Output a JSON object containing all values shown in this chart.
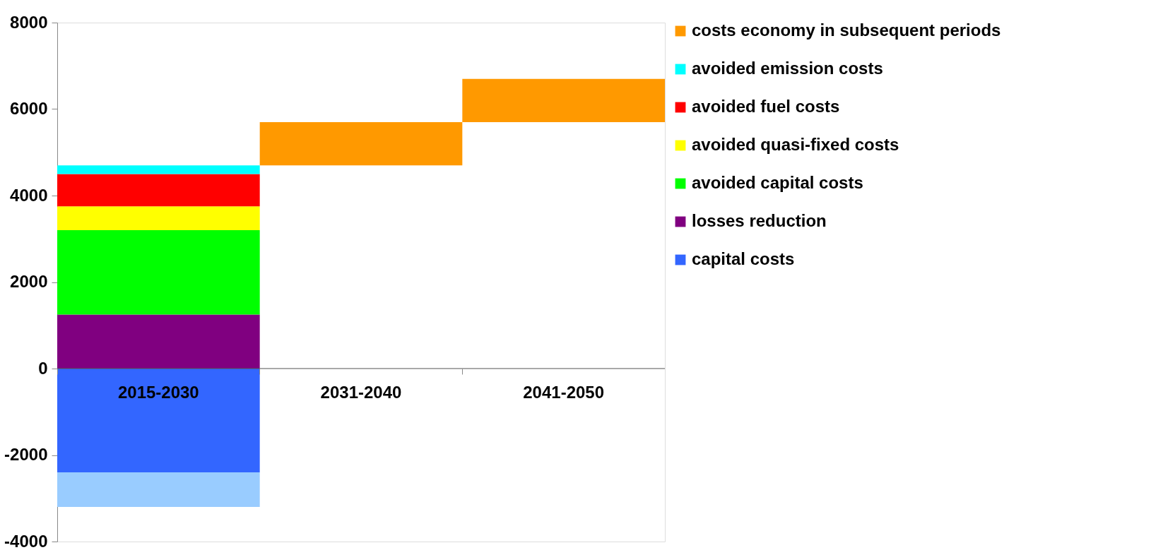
{
  "chart_data": {
    "type": "bar",
    "stacked": true,
    "categories": [
      "2015-2030",
      "2031-2040",
      "2041-2050"
    ],
    "series": [
      {
        "name": "losses reduction",
        "color": "#800080",
        "values": [
          1250,
          null,
          null
        ]
      },
      {
        "name": "avoided capital costs",
        "color": "#00ff00",
        "values": [
          1950,
          null,
          null
        ]
      },
      {
        "name": "avoided quasi-fixed costs",
        "color": "#ffff00",
        "values": [
          550,
          null,
          null
        ]
      },
      {
        "name": "avoided fuel costs",
        "color": "#ff0000",
        "values": [
          750,
          null,
          null
        ]
      },
      {
        "name": "avoided emission costs",
        "color": "#00ffff",
        "values": [
          200,
          null,
          null
        ]
      },
      {
        "name": "costs economy in subsequent periods",
        "color": "#ff9900",
        "values": [
          null,
          1000,
          1000
        ],
        "base": [
          null,
          4700,
          5700
        ]
      },
      {
        "name": "capital costs",
        "color": "#3366ff",
        "values": [
          -2400,
          null,
          null
        ]
      },
      {
        "color": "#99ccff",
        "values": [
          -800,
          null,
          null
        ]
      }
    ],
    "ylim": [
      -4000,
      8000
    ],
    "yticks": [
      -4000,
      -2000,
      0,
      2000,
      4000,
      6000,
      8000
    ],
    "grid": false,
    "legend": "right"
  }
}
